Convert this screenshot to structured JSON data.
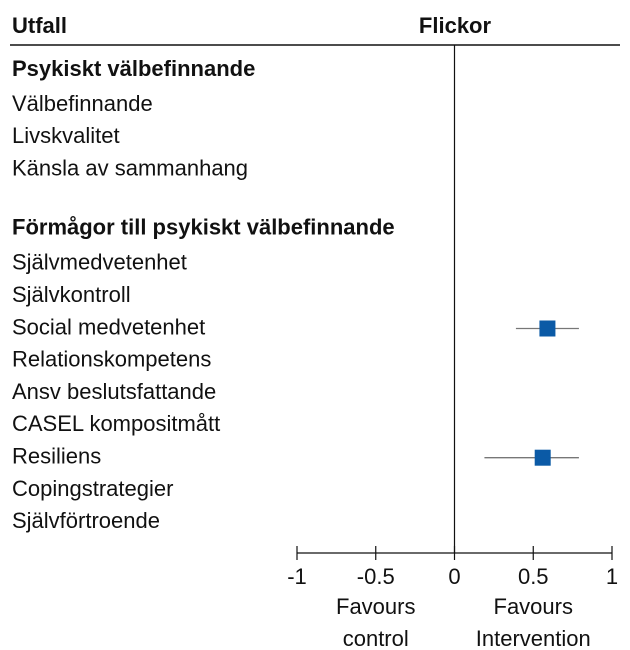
{
  "chart_data": {
    "type": "forest",
    "column_headers": [
      "Utfall",
      "Flickor"
    ],
    "groups": [
      {
        "name": "Psykiskt välbefinnande",
        "categories": [
          "Välbefinnande",
          "Livskvalitet",
          "Känsla av sammanhang"
        ],
        "values": [
          null,
          null,
          null
        ],
        "lower": [
          null,
          null,
          null
        ],
        "upper": [
          null,
          null,
          null
        ]
      },
      {
        "name": "Förmågor till psykiskt välbefinnande",
        "categories": [
          "Självmedvetenhet",
          "Självkontroll",
          "Social medvetenhet",
          "Relationskompetens",
          "Ansv beslutsfattande",
          "CASEL kompositmått",
          "Resiliens",
          "Copingstrategier",
          "Självförtroende"
        ],
        "values": [
          null,
          null,
          0.59,
          null,
          null,
          null,
          0.56,
          null,
          null
        ],
        "lower": [
          null,
          null,
          0.39,
          null,
          null,
          null,
          0.19,
          null,
          null
        ],
        "upper": [
          null,
          null,
          0.79,
          null,
          null,
          null,
          0.79,
          null,
          null
        ]
      }
    ],
    "color": "#0b5aa6",
    "xlim": [
      -1,
      1
    ],
    "xticks": [
      -1,
      -0.5,
      0,
      0.5,
      1
    ],
    "x_annotations": [
      [
        "Favours",
        "control"
      ],
      [
        "Favours",
        "Intervention"
      ]
    ]
  }
}
